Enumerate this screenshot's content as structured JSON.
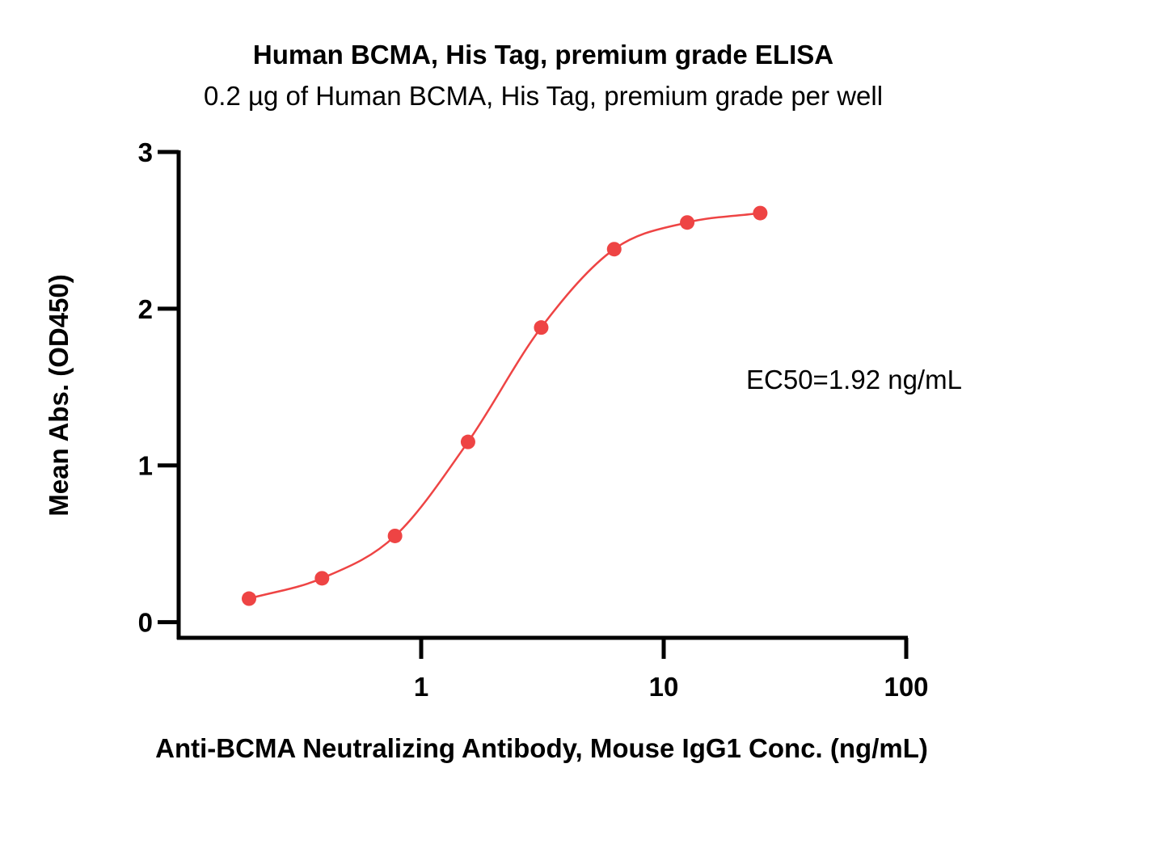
{
  "chart_data": {
    "type": "scatter",
    "title": "Human BCMA, His Tag, premium grade ELISA",
    "subtitle": "0.2 µg of Human BCMA, His Tag, premium grade per well",
    "xlabel": "Anti-BCMA Neutralizing Antibody, Mouse IgG1 Conc. (ng/mL)",
    "ylabel": "Mean Abs. (OD450)",
    "x_scale": "log",
    "xlim": [
      0.1,
      100
    ],
    "ylim": [
      -0.1,
      3
    ],
    "x_ticks": [
      {
        "value": 1,
        "label": "1"
      },
      {
        "value": 10,
        "label": "10"
      },
      {
        "value": 100,
        "label": "100"
      }
    ],
    "y_ticks": [
      {
        "value": 0,
        "label": "0"
      },
      {
        "value": 1,
        "label": "1"
      },
      {
        "value": 2,
        "label": "2"
      },
      {
        "value": 3,
        "label": "3"
      }
    ],
    "grid": false,
    "legend": false,
    "series": [
      {
        "x": [
          0.195,
          0.39,
          0.78,
          1.56,
          3.125,
          6.25,
          12.5,
          25
        ],
        "y": [
          0.15,
          0.28,
          0.55,
          1.15,
          1.88,
          2.38,
          2.55,
          2.61
        ],
        "fit": "4PL",
        "color": "#ee4444"
      }
    ],
    "annotations": [
      {
        "text": "EC50=1.92 ng/mL"
      }
    ],
    "axis_color": "#000000"
  }
}
